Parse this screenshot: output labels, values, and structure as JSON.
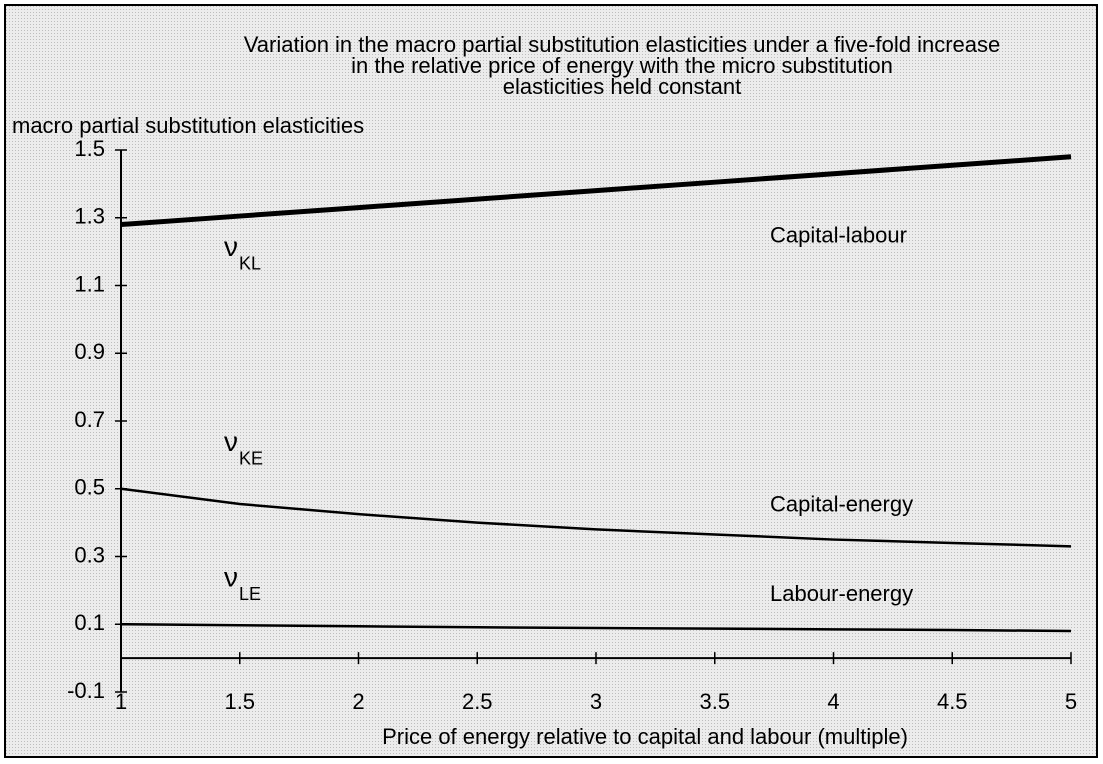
{
  "chart_data": {
    "type": "line",
    "title": [
      "Variation in the macro partial substitution elasticities under a five-fold increase",
      "in the relative price of energy with the micro substitution",
      "elasticities held constant"
    ],
    "ylabel": "macro partial substitution elasticities",
    "xlabel": "Price of energy relative to capital and labour (multiple)",
    "x": [
      1,
      1.5,
      2,
      2.5,
      3,
      3.5,
      4,
      4.5,
      5
    ],
    "series": [
      {
        "name": "Capital-labour",
        "symbol": "ν",
        "subscript": "KL",
        "color": "#000000",
        "values": [
          1.28,
          1.305,
          1.33,
          1.355,
          1.38,
          1.405,
          1.43,
          1.455,
          1.48
        ]
      },
      {
        "name": "Capital-energy",
        "symbol": "ν",
        "subscript": "KE",
        "color": "#000000",
        "values": [
          0.5,
          0.455,
          0.425,
          0.4,
          0.38,
          0.365,
          0.35,
          0.34,
          0.33
        ]
      },
      {
        "name": "Labour-energy",
        "symbol": "ν",
        "subscript": "LE",
        "color": "#000000",
        "values": [
          0.1,
          0.097,
          0.094,
          0.091,
          0.089,
          0.087,
          0.085,
          0.083,
          0.08
        ]
      }
    ],
    "xlim": [
      1,
      5
    ],
    "xticks": [
      1,
      1.5,
      2,
      2.5,
      3,
      3.5,
      4,
      4.5,
      5
    ],
    "ylim": [
      -0.1,
      1.5
    ],
    "yticks": [
      -0.1,
      0.1,
      0.3,
      0.5,
      0.7,
      0.9,
      1.1,
      1.3,
      1.5
    ],
    "grid": false
  }
}
